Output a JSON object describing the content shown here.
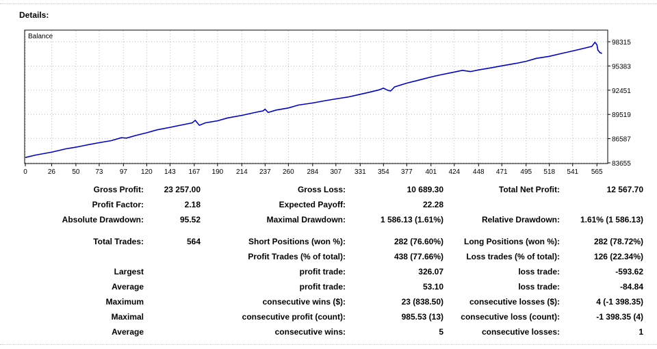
{
  "header": {
    "title": "Details:"
  },
  "chart_data": {
    "type": "line",
    "title": "Balance",
    "x_ticks": [
      0,
      26,
      50,
      73,
      97,
      120,
      143,
      167,
      190,
      214,
      237,
      260,
      284,
      307,
      331,
      354,
      377,
      401,
      424,
      448,
      471,
      495,
      518,
      541,
      565
    ],
    "y_ticks": [
      83655,
      86587,
      89519,
      92451,
      95383,
      98315
    ],
    "xlim": [
      0,
      575
    ],
    "ylim": [
      83655,
      98315
    ],
    "series": [
      {
        "color": "#0000cc",
        "x": [
          0,
          10,
          26,
          40,
          50,
          60,
          73,
          85,
          95,
          100,
          110,
          120,
          130,
          143,
          155,
          165,
          168,
          172,
          178,
          190,
          200,
          214,
          225,
          235,
          237,
          240,
          248,
          260,
          270,
          284,
          295,
          307,
          320,
          331,
          340,
          350,
          354,
          358,
          361,
          365,
          377,
          390,
          401,
          410,
          424,
          432,
          440,
          448,
          460,
          471,
          485,
          495,
          505,
          518,
          530,
          541,
          550,
          560,
          563,
          565,
          566,
          568,
          570
        ],
        "y": [
          84300,
          84600,
          84950,
          85350,
          85550,
          85800,
          86100,
          86350,
          86700,
          86650,
          87000,
          87300,
          87650,
          87950,
          88250,
          88500,
          88800,
          88200,
          88500,
          88750,
          89100,
          89400,
          89700,
          89950,
          90150,
          89750,
          90050,
          90300,
          90650,
          90900,
          91150,
          91400,
          91650,
          91950,
          92200,
          92500,
          92700,
          92450,
          92350,
          92850,
          93300,
          93700,
          94050,
          94300,
          94650,
          94850,
          94700,
          94900,
          95150,
          95400,
          95700,
          95950,
          96300,
          96550,
          96900,
          97200,
          97450,
          97750,
          98250,
          97950,
          97300,
          97000,
          96900
        ]
      }
    ]
  },
  "stats": {
    "rows": [
      [
        "Gross Profit:",
        "23 257.00",
        "Gross Loss:",
        "10 689.30",
        "Total Net Profit:",
        "12 567.70"
      ],
      [
        "Profit Factor:",
        "2.18",
        "Expected Payoff:",
        "22.28",
        "",
        ""
      ],
      [
        "Absolute Drawdown:",
        "95.52",
        "Maximal Drawdown:",
        "1 586.13 (1.61%)",
        "Relative Drawdown:",
        "1.61% (1 586.13)"
      ],
      [
        "Total Trades:",
        "564",
        "Short Positions (won %):",
        "282 (76.60%)",
        "Long Positions (won %):",
        "282 (78.72%)"
      ],
      [
        "",
        "",
        "Profit Trades (% of total):",
        "438 (77.66%)",
        "Loss trades (% of total):",
        "126 (22.34%)"
      ],
      [
        "Largest",
        "",
        "profit trade:",
        "326.07",
        "loss trade:",
        "-593.62"
      ],
      [
        "Average",
        "",
        "profit trade:",
        "53.10",
        "loss trade:",
        "-84.84"
      ],
      [
        "Maximum",
        "",
        "consecutive wins ($):",
        "23 (838.50)",
        "consecutive losses ($):",
        "4 (-1 398.35)"
      ],
      [
        "Maximal",
        "",
        "consecutive profit (count):",
        "985.53 (13)",
        "consecutive loss (count):",
        "-1 398.35 (4)"
      ],
      [
        "Average",
        "",
        "consecutive wins:",
        "5",
        "consecutive losses:",
        "1"
      ]
    ]
  }
}
